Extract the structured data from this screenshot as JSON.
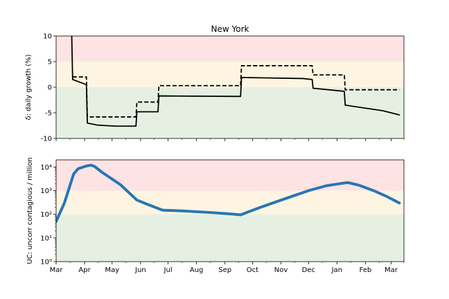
{
  "chart_data": [
    {
      "type": "line",
      "title": "New York",
      "ylabel": "δ: daily growth (%)",
      "xlabel": "",
      "x_tick_labels": [
        "Mar",
        "Apr",
        "May",
        "Jun",
        "Jul",
        "Aug",
        "Sep",
        "Oct",
        "Nov",
        "Dec",
        "Jan",
        "Feb",
        "Mar"
      ],
      "ylim": [
        -10,
        10
      ],
      "yticks": [
        -10,
        -5,
        0,
        5,
        10
      ],
      "grid": false,
      "legend": "none",
      "bands": [
        {
          "from": 5,
          "to": 10,
          "color": "#fde3e3"
        },
        {
          "from": 0,
          "to": 5,
          "color": "#fdf5e2"
        },
        {
          "from": -10,
          "to": 0,
          "color": "#e5f0e2"
        }
      ],
      "series": [
        {
          "style": "solid",
          "color": "#000000",
          "points": [
            [
              "2020-03-18",
              10
            ],
            [
              "2020-03-19",
              1.5
            ],
            [
              "2020-04-03",
              0.5
            ],
            [
              "2020-04-04",
              -7.0
            ],
            [
              "2020-04-15",
              -7.4
            ],
            [
              "2020-05-05",
              -7.6
            ],
            [
              "2020-05-27",
              -7.6
            ],
            [
              "2020-05-28",
              -4.8
            ],
            [
              "2020-06-20",
              -4.8
            ],
            [
              "2020-06-21",
              -1.7
            ],
            [
              "2020-09-18",
              -1.8
            ],
            [
              "2020-09-19",
              1.9
            ],
            [
              "2020-11-25",
              1.7
            ],
            [
              "2020-12-05",
              1.5
            ],
            [
              "2020-12-06",
              -0.2
            ],
            [
              "2021-01-09",
              -0.8
            ],
            [
              "2021-01-10",
              -3.5
            ],
            [
              "2021-02-20",
              -4.6
            ],
            [
              "2021-03-10",
              -5.4
            ]
          ]
        },
        {
          "style": "dashed",
          "color": "#000000",
          "points": [
            [
              "2020-03-19",
              2.0
            ],
            [
              "2020-04-03",
              2.0
            ],
            [
              "2020-04-04",
              -5.8
            ],
            [
              "2020-05-27",
              -5.8
            ],
            [
              "2020-05-28",
              -2.9
            ],
            [
              "2020-06-20",
              -2.9
            ],
            [
              "2020-06-21",
              0.3
            ],
            [
              "2020-09-18",
              0.3
            ],
            [
              "2020-09-19",
              4.2
            ],
            [
              "2020-12-05",
              4.2
            ],
            [
              "2020-12-06",
              2.4
            ],
            [
              "2021-01-09",
              2.4
            ],
            [
              "2021-01-10",
              -0.5
            ],
            [
              "2021-03-10",
              -0.5
            ]
          ]
        }
      ]
    },
    {
      "type": "line",
      "title": "",
      "ylabel": "UC: uncorr contagious / million",
      "xlabel": "",
      "x_tick_labels": [
        "Mar",
        "Apr",
        "May",
        "Jun",
        "Jul",
        "Aug",
        "Sep",
        "Oct",
        "Nov",
        "Dec",
        "Jan",
        "Feb",
        "Mar"
      ],
      "yscale": "log",
      "ylim": [
        1,
        20000
      ],
      "yticks": [
        1,
        10,
        100,
        1000,
        10000
      ],
      "ytick_labels": [
        "10⁰",
        "10¹",
        "10²",
        "10³",
        "10⁴"
      ],
      "grid": false,
      "legend": "none",
      "bands": [
        {
          "from": 1000,
          "to": 20000,
          "color": "#fde3e3"
        },
        {
          "from": 100,
          "to": 1000,
          "color": "#fdf5e2"
        },
        {
          "from": 1,
          "to": 100,
          "color": "#e5f0e2"
        }
      ],
      "series": [
        {
          "style": "solid",
          "color": "#2876b3",
          "points": [
            [
              "2020-03-01",
              50
            ],
            [
              "2020-03-10",
              300
            ],
            [
              "2020-03-20",
              5000
            ],
            [
              "2020-03-25",
              8500
            ],
            [
              "2020-04-03",
              11000
            ],
            [
              "2020-04-08",
              12000
            ],
            [
              "2020-04-12",
              10500
            ],
            [
              "2020-04-20",
              6000
            ],
            [
              "2020-05-10",
              1800
            ],
            [
              "2020-05-28",
              400
            ],
            [
              "2020-06-10",
              250
            ],
            [
              "2020-06-25",
              150
            ],
            [
              "2020-07-15",
              140
            ],
            [
              "2020-08-15",
              120
            ],
            [
              "2020-09-05",
              105
            ],
            [
              "2020-09-18",
              95
            ],
            [
              "2020-10-10",
              200
            ],
            [
              "2020-11-05",
              450
            ],
            [
              "2020-12-01",
              1000
            ],
            [
              "2020-12-20",
              1600
            ],
            [
              "2021-01-05",
              2000
            ],
            [
              "2021-01-13",
              2200
            ],
            [
              "2021-01-25",
              1700
            ],
            [
              "2021-02-10",
              1000
            ],
            [
              "2021-02-25",
              550
            ],
            [
              "2021-03-10",
              300
            ]
          ]
        }
      ]
    }
  ]
}
